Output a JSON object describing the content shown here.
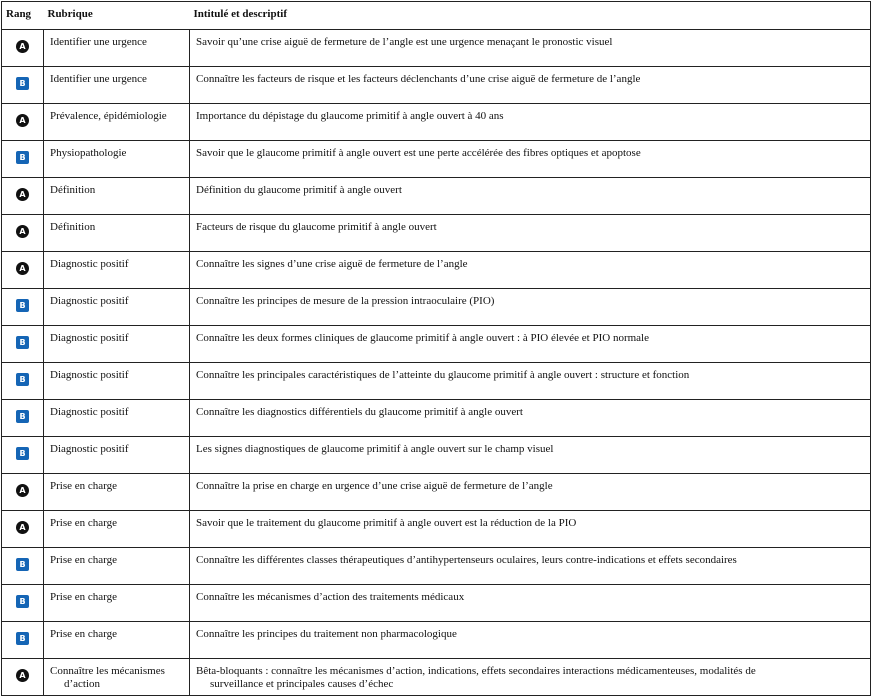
{
  "headers": {
    "rang": "Rang",
    "rubrique": "Rubrique",
    "descriptif": "Intitulé et descriptif"
  },
  "colors": {
    "rang_A": "#111111",
    "rang_B": "#1565b5"
  },
  "rows": [
    {
      "rang": "A",
      "rubrique": "Identifier une urgence",
      "descriptif": "Savoir qu’une crise aiguë de fermeture de l’angle est une urgence menaçant le pronostic visuel"
    },
    {
      "rang": "B",
      "rubrique": "Identifier une urgence",
      "descriptif": "Connaître les facteurs de risque et les facteurs déclenchants d’une crise aiguë de fermeture de l’angle"
    },
    {
      "rang": "A",
      "rubrique": "Prévalence, épidémiologie",
      "descriptif": "Importance du dépistage du glaucome primitif à angle ouvert à 40 ans"
    },
    {
      "rang": "B",
      "rubrique": "Physiopathologie",
      "descriptif": "Savoir que le glaucome primitif à angle ouvert est une perte accélérée des fibres optiques et apoptose"
    },
    {
      "rang": "A",
      "rubrique": "Définition",
      "descriptif": "Définition du glaucome primitif à angle ouvert"
    },
    {
      "rang": "A",
      "rubrique": "Définition",
      "descriptif": "Facteurs de risque du glaucome primitif à angle ouvert"
    },
    {
      "rang": "A",
      "rubrique": "Diagnostic positif",
      "descriptif": "Connaître les signes d’une crise aiguë de fermeture de l’angle"
    },
    {
      "rang": "B",
      "rubrique": "Diagnostic positif",
      "descriptif": "Connaître les principes de mesure de la pression intraoculaire (PIO)"
    },
    {
      "rang": "B",
      "rubrique": "Diagnostic positif",
      "descriptif": "Connaître les deux formes cliniques de glaucome primitif à angle ouvert : à PIO élevée et PIO normale"
    },
    {
      "rang": "B",
      "rubrique": "Diagnostic positif",
      "descriptif": "Connaître les principales caractéristiques de l’atteinte du glaucome primitif à angle ouvert : structure et fonction"
    },
    {
      "rang": "B",
      "rubrique": "Diagnostic positif",
      "descriptif": "Connaître les diagnostics différentiels du glaucome primitif à angle ouvert"
    },
    {
      "rang": "B",
      "rubrique": "Diagnostic positif",
      "descriptif": "Les signes diagnostiques de glaucome primitif à angle ouvert sur le champ visuel"
    },
    {
      "rang": "A",
      "rubrique": "Prise en charge",
      "descriptif": "Connaître la prise en charge en urgence d’une crise aiguë de fermeture de l’angle"
    },
    {
      "rang": "A",
      "rubrique": "Prise en charge",
      "descriptif": "Savoir que le traitement du glaucome primitif à angle ouvert est la réduction de la PIO"
    },
    {
      "rang": "B",
      "rubrique": "Prise en charge",
      "descriptif": "Connaître les différentes classes thérapeutiques d’antihypertenseurs oculaires, leurs contre-indications et effets secondaires"
    },
    {
      "rang": "B",
      "rubrique": "Prise en charge",
      "descriptif": "Connaître les mécanismes d’action des traitements médicaux"
    },
    {
      "rang": "B",
      "rubrique": "Prise en charge",
      "descriptif": "Connaître les principes du traitement non pharmacologique"
    },
    {
      "rang": "A",
      "rubrique": "Connaître les mécanismes",
      "rubrique_cont": "d’action",
      "descriptif": "Bêta-bloquants : connaître les mécanismes d’action, indications, effets secondaires interactions médicamenteuses, modalités de",
      "descriptif_cont": "surveillance et principales causes d’échec"
    }
  ]
}
